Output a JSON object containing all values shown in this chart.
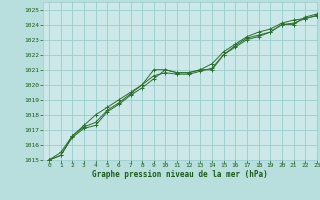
{
  "title": "Graphe pression niveau de la mer (hPa)",
  "bg_color": "#b8dede",
  "plot_bg_color": "#cce8e8",
  "grid_color": "#99cccc",
  "line_color": "#2d6e2d",
  "marker_color": "#2d6e2d",
  "text_color": "#1a5c1a",
  "xlim": [
    -0.5,
    23
  ],
  "ylim": [
    1015,
    1025.5
  ],
  "xticks": [
    0,
    1,
    2,
    3,
    4,
    5,
    6,
    7,
    8,
    9,
    10,
    11,
    12,
    13,
    14,
    15,
    16,
    17,
    18,
    19,
    20,
    21,
    22,
    23
  ],
  "yticks": [
    1015,
    1016,
    1017,
    1018,
    1019,
    1020,
    1021,
    1022,
    1023,
    1024,
    1025
  ],
  "series": [
    [
      1015.0,
      1015.3,
      1016.5,
      1017.1,
      1017.3,
      1018.2,
      1018.7,
      1019.3,
      1019.8,
      1020.4,
      1021.0,
      1020.8,
      1020.8,
      1021.0,
      1021.0,
      1022.0,
      1022.5,
      1023.0,
      1023.2,
      1023.5,
      1024.0,
      1024.0,
      1024.5,
      1024.7
    ],
    [
      1015.0,
      1015.3,
      1016.6,
      1017.2,
      1017.5,
      1018.3,
      1018.8,
      1019.4,
      1020.0,
      1020.6,
      1020.8,
      1020.7,
      1020.7,
      1020.9,
      1021.1,
      1022.0,
      1022.6,
      1023.1,
      1023.3,
      1023.5,
      1024.0,
      1024.1,
      1024.4,
      1024.6
    ],
    [
      1015.0,
      1015.5,
      1016.6,
      1017.3,
      1018.0,
      1018.5,
      1019.0,
      1019.5,
      1020.0,
      1021.0,
      1021.0,
      1020.8,
      1020.8,
      1021.0,
      1021.4,
      1022.2,
      1022.7,
      1023.2,
      1023.5,
      1023.7,
      1024.1,
      1024.3,
      1024.4,
      1024.6
    ]
  ]
}
